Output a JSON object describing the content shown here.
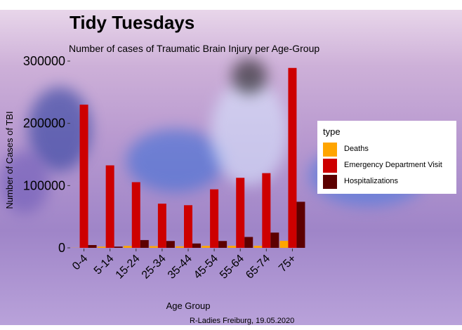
{
  "chart_data": {
    "type": "bar",
    "title": "Tidy Tuesdays",
    "subtitle": "Number of cases of Traumatic Brain Injury per Age-Group",
    "xlabel": "Age Group",
    "ylabel": "Number of Cases of TBI",
    "caption": "R-Ladies Freiburg, 19.05.2020",
    "categories": [
      "0-4",
      "5-14",
      "15-24",
      "25-34",
      "35-44",
      "45-54",
      "55-64",
      "65-74",
      "75+"
    ],
    "ylim": [
      0,
      310000
    ],
    "yticks": [
      0,
      100000,
      200000,
      300000
    ],
    "ytick_labels": [
      "0",
      "100000",
      "200000",
      "300000"
    ],
    "grid": false,
    "legend": {
      "title": "type",
      "position": "right"
    },
    "series": [
      {
        "name": "Deaths",
        "color": "#FFA500",
        "values": [
          228,
          2003,
          3125,
          2804,
          2497,
          3219,
          3240,
          3250,
          11200
        ]
      },
      {
        "name": "Emergency Department Visit",
        "color": "#CD0000",
        "values": [
          230000,
          132500,
          105500,
          71000,
          68500,
          94000,
          112500,
          120000,
          289000
        ]
      },
      {
        "name": "Hospitalizations",
        "color": "#5C0000",
        "values": [
          4500,
          2000,
          12500,
          11000,
          7000,
          11000,
          17500,
          24500,
          74000
        ]
      }
    ]
  }
}
